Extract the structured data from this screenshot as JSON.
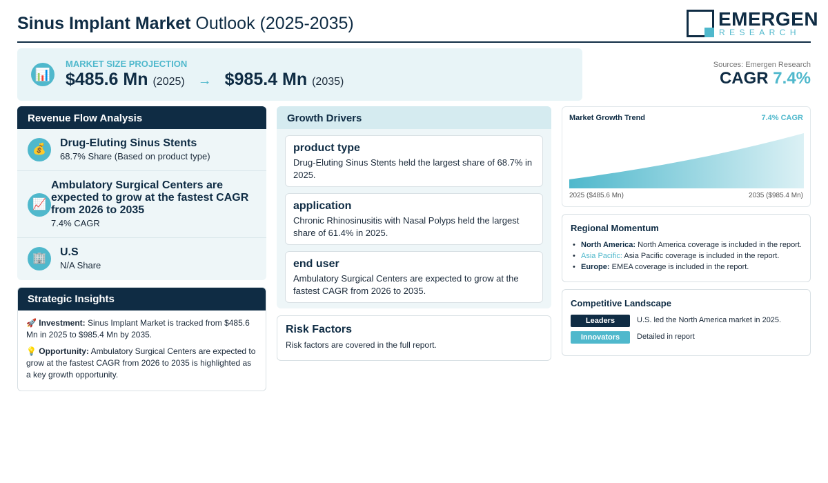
{
  "header": {
    "title_bold": "Sinus Implant Market",
    "title_light": "Outlook (2025-2035)",
    "logo_main": "EMERGEN",
    "logo_sub": "RESEARCH"
  },
  "projection": {
    "icon": "bar-chart-icon",
    "label": "MARKET SIZE PROJECTION",
    "start_value": "$485.6 Mn",
    "start_year": "(2025)",
    "arrow": "→",
    "end_value": "$985.4 Mn",
    "end_year": "(2035)"
  },
  "sources": "Sources: Emergen Research",
  "cagr": {
    "label": "CAGR",
    "value": "7.4%"
  },
  "revenue": {
    "title": "Revenue Flow Analysis",
    "items": [
      {
        "icon": "money-bag-icon",
        "title": "Drug-Eluting Sinus Stents",
        "sub": "68.7% Share (Based on product type)"
      },
      {
        "icon": "trend-chart-icon",
        "title": "Ambulatory Surgical Centers are expected to grow at the fastest CAGR from 2026 to 2035",
        "sub": "7.4% CAGR"
      },
      {
        "icon": "building-icon",
        "title": "U.S",
        "sub": "N/A Share"
      }
    ]
  },
  "insights": {
    "title": "Strategic Insights",
    "investment_label": "Investment:",
    "investment_text": "Sinus Implant Market is tracked from $485.6 Mn in 2025 to $985.4 Mn by 2035.",
    "opportunity_label": "Opportunity:",
    "opportunity_text": "Ambulatory Surgical Centers are expected to grow at the fastest CAGR from 2026 to 2035 is highlighted as a key growth opportunity."
  },
  "drivers": {
    "title": "Growth Drivers",
    "cards": [
      {
        "title": "product type",
        "text": "Drug-Eluting Sinus Stents held the largest share of 68.7% in 2025."
      },
      {
        "title": "application",
        "text": "Chronic Rhinosinusitis with Nasal Polyps held the largest share of 61.4% in 2025."
      },
      {
        "title": "end user",
        "text": "Ambulatory Surgical Centers are expected to grow at the fastest CAGR from 2026 to 2035."
      }
    ]
  },
  "risk": {
    "title": "Risk Factors",
    "text": "Risk factors are covered in the full report."
  },
  "trend": {
    "title": "Market Growth Trend",
    "cagr_label": "7.4% CAGR",
    "start_label": "2025 ($485.6 Mn)",
    "end_label": "2035 ($985.4 Mn)"
  },
  "chart_data": {
    "type": "area",
    "x": [
      2025,
      2035
    ],
    "values": [
      485.6,
      985.4
    ],
    "title": "Market Growth Trend",
    "xlabel": "",
    "ylabel": "",
    "grid": false,
    "colors": {
      "fill": "#4fb8cc"
    }
  },
  "regional": {
    "title": "Regional Momentum",
    "items": [
      {
        "region": "North America:",
        "text": "North America coverage is included in the report."
      },
      {
        "region": "Asia Pacific:",
        "text": "Asia Pacific coverage is included in the report."
      },
      {
        "region": "Europe:",
        "text": "EMEA coverage is included in the report."
      }
    ]
  },
  "competitive": {
    "title": "Competitive Landscape",
    "rows": [
      {
        "badge": "Leaders",
        "text": "U.S. led the North America market in 2025."
      },
      {
        "badge": "Innovators",
        "text": "Detailed in report"
      }
    ]
  },
  "colors": {
    "navy": "#0f2c44",
    "teal": "#4fb8cc",
    "panel": "#eef6f8"
  }
}
